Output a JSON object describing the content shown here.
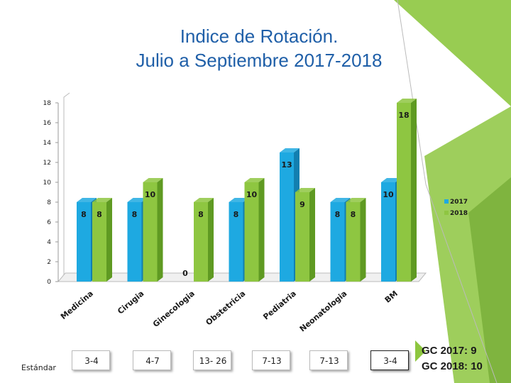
{
  "title_line1": "Indice de Rotación.",
  "title_line2": "Julio a Septiembre 2017-2018",
  "colors": {
    "series_2017": "#1ea9e1",
    "series_2018": "#8ec641",
    "title": "#1f5fa8",
    "accent_green": "#8dc63f"
  },
  "chart_data": {
    "type": "bar",
    "categories": [
      "Medicina",
      "Cirugia",
      "Ginecologia",
      "Obstetricia",
      "Pediatria",
      "Neonatologia",
      "BM"
    ],
    "series": [
      {
        "name": "2017",
        "values": [
          8,
          8,
          0,
          8,
          13,
          8,
          10
        ]
      },
      {
        "name": "2018",
        "values": [
          8,
          10,
          8,
          10,
          9,
          8,
          18
        ]
      }
    ],
    "yticks": [
      "0",
      "2",
      "4",
      "6",
      "8",
      "10",
      "12",
      "14",
      "16",
      "18"
    ],
    "ylim": [
      0,
      18
    ],
    "grid": false,
    "legend_position": "right",
    "data_labels": true
  },
  "standards": {
    "label": "Estándar",
    "values": [
      "3-4",
      "4-7",
      "13- 26",
      "7-13",
      "7-13",
      "3-4"
    ]
  },
  "gc": {
    "line1": "GC 2017: 9",
    "line2": "GC 2018: 10"
  }
}
